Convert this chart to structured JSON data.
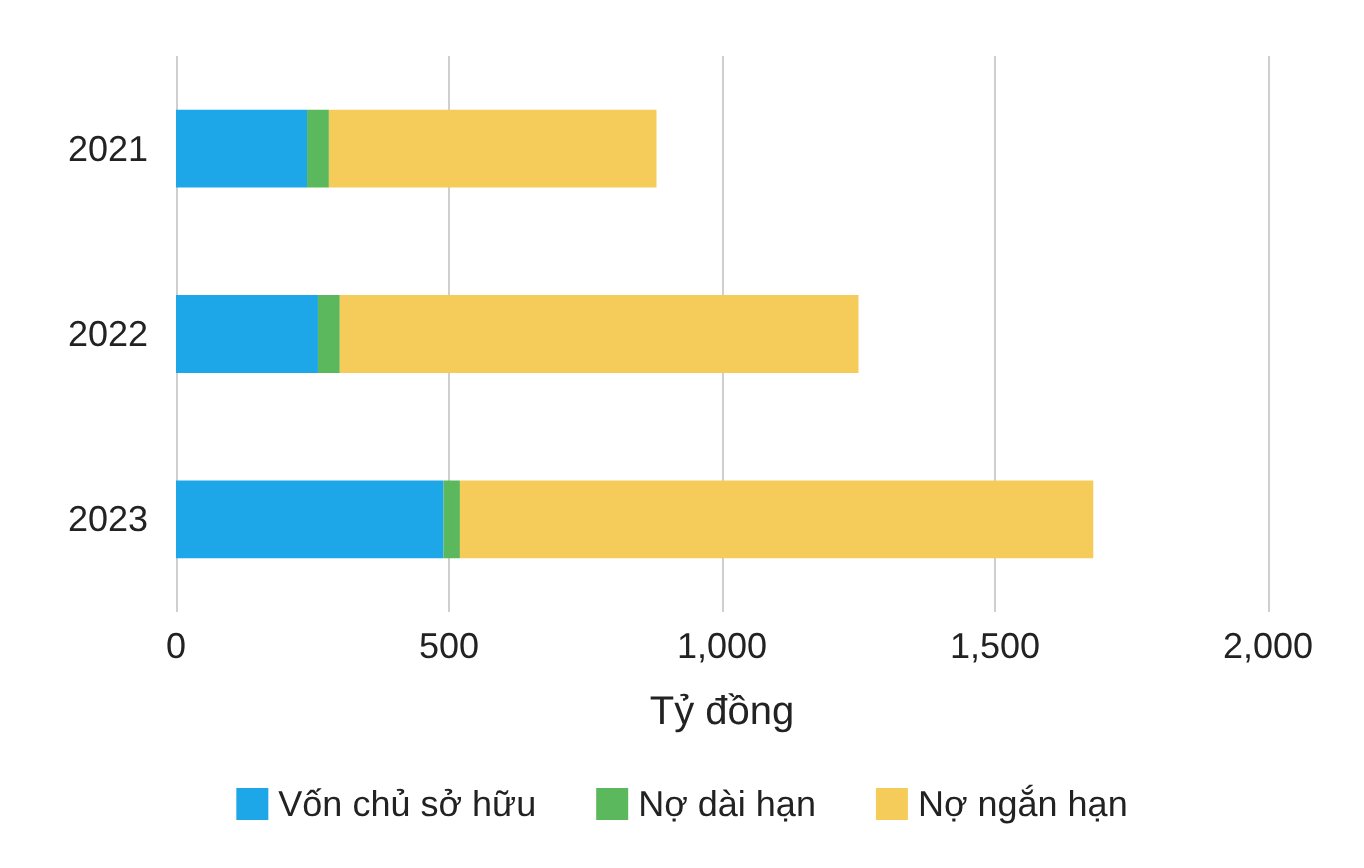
{
  "chart_data": {
    "type": "bar",
    "orientation": "horizontal",
    "stacked": true,
    "xlabel": "Tỷ đồng",
    "categories": [
      "2021",
      "2022",
      "2023"
    ],
    "series": [
      {
        "name": "Vốn chủ sở hữu",
        "color": "#1ea7e8",
        "values": [
          240,
          260,
          490
        ]
      },
      {
        "name": "Nợ dài hạn",
        "color": "#5cb85c",
        "values": [
          40,
          40,
          30
        ]
      },
      {
        "name": "Nợ ngắn hạn",
        "color": "#f5cc5a",
        "values": [
          600,
          950,
          1160
        ]
      }
    ],
    "xlim": [
      0,
      2000
    ],
    "xticks": [
      0,
      {
        "value": 500,
        "label": "500"
      },
      {
        "value": 1000,
        "label": "1,000"
      },
      {
        "value": 1500,
        "label": "1,500"
      },
      {
        "value": 2000,
        "label": "2,000"
      }
    ],
    "grid": "x",
    "legend": "bottom"
  }
}
